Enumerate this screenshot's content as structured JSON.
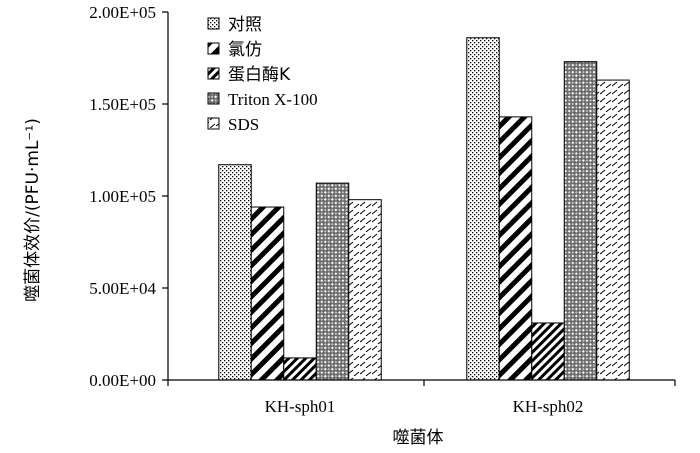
{
  "chart_data": {
    "type": "bar",
    "categories": [
      "KH-sph01",
      "KH-sph02"
    ],
    "series": [
      {
        "name": "对照",
        "values": [
          117000,
          186000
        ],
        "pattern": "dots"
      },
      {
        "name": "氯仿",
        "values": [
          94000,
          143000
        ],
        "pattern": "wide-diag-thick"
      },
      {
        "name": "蛋白酶K",
        "values": [
          12000,
          31000
        ],
        "pattern": "narrow-diag-thick"
      },
      {
        "name": "Triton X-100",
        "values": [
          107000,
          173000
        ],
        "pattern": "crosshatch"
      },
      {
        "name": "SDS",
        "values": [
          98000,
          163000
        ],
        "pattern": "dashes"
      }
    ],
    "xlabel": "噬菌体",
    "ylabel": "噬菌体效价/(PFU·mL⁻¹)",
    "ylim": [
      0,
      200000
    ],
    "yticks": [
      0,
      50000,
      100000,
      150000,
      200000
    ],
    "ytick_labels": [
      "0.00E+00",
      "5.00E+04",
      "1.00E+05",
      "1.50E+05",
      "2.00E+05"
    ],
    "grid": false,
    "legend_position": "top-left"
  }
}
